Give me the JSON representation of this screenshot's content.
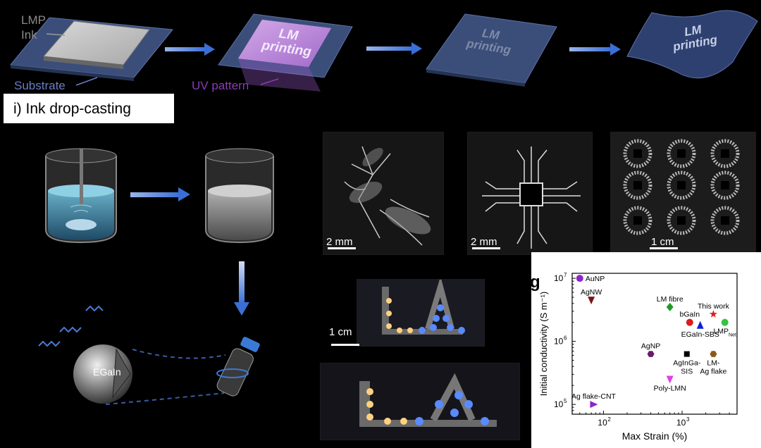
{
  "top_row": {
    "lmp_ink_label_1": "LMP",
    "lmp_ink_label_2": "Ink",
    "substrate_label": "Substrate",
    "uv_pattern_label": "UV pattern",
    "panel2_text_1": "LM",
    "panel2_text_2": "printing",
    "panel3_text_1": "LM",
    "panel3_text_2": "printing",
    "panel4_text_1": "LM",
    "panel4_text_2": "printing"
  },
  "step_box": {
    "text": "i) Ink drop-casting"
  },
  "droplet": {
    "label": "EGaIn"
  },
  "photos": {
    "flower_scale": "2 mm",
    "chip_scale": "2 mm",
    "array_scale": "1 cm",
    "led_scale": "1 cm"
  },
  "chart_data": {
    "type": "scatter",
    "panel_letter": "g",
    "xlabel": "Max Strain (%)",
    "ylabel": "Initial conductivity (S m⁻¹)",
    "xscale": "log",
    "yscale": "log",
    "xlim": [
      40,
      5000
    ],
    "ylim": [
      70000,
      12000000
    ],
    "x_ticks": [
      {
        "v": 100,
        "base": "10",
        "exp": "2"
      },
      {
        "v": 1000,
        "base": "10",
        "exp": "3"
      }
    ],
    "y_ticks": [
      {
        "v": 100000,
        "base": "10",
        "exp": "5"
      },
      {
        "v": 1000000,
        "base": "10",
        "exp": "6"
      },
      {
        "v": 10000000,
        "base": "10",
        "exp": "7"
      }
    ],
    "points": [
      {
        "name": "AuNP",
        "x": 50,
        "y": 10000000,
        "marker": "circle",
        "color": "#8e24c8",
        "label_anchor": "right"
      },
      {
        "name": "AgNW",
        "x": 70,
        "y": 4500000,
        "marker": "triangle-down",
        "color": "#7a1414",
        "label_anchor": "above"
      },
      {
        "name": "LM fibre",
        "x": 700,
        "y": 3500000,
        "marker": "diamond",
        "color": "#1f9a2a",
        "label_anchor": "above"
      },
      {
        "name": "bGaIn",
        "x": 1250,
        "y": 2000000,
        "marker": "circle",
        "color": "#e01818",
        "label_anchor": "above"
      },
      {
        "name": "This work",
        "x": 2500,
        "y": 2700000,
        "marker": "star",
        "color": "#e01818",
        "label_anchor": "above"
      },
      {
        "name": "LMP",
        "sub": "Net",
        "x": 3500,
        "y": 2000000,
        "marker": "circle",
        "color": "#35c240",
        "label_anchor": "below"
      },
      {
        "name": "EGaIn-SBS",
        "x": 1700,
        "y": 1800000,
        "marker": "triangle-up",
        "color": "#1020d8",
        "label_anchor": "below"
      },
      {
        "name": "AgNP",
        "x": 400,
        "y": 630000,
        "marker": "hexagon",
        "color": "#6a1a6a",
        "label_anchor": "above"
      },
      {
        "name": "AgInGa-SIS",
        "x": 1150,
        "y": 630000,
        "marker": "square",
        "color": "#000000",
        "label_anchor": "below"
      },
      {
        "name": "LM-Ag flake",
        "x": 2500,
        "y": 630000,
        "marker": "hexagon",
        "color": "#8a5a14",
        "label_anchor": "below"
      },
      {
        "name": "Poly-LMN",
        "x": 700,
        "y": 250000,
        "marker": "triangle-down",
        "color": "#e040e0",
        "label_anchor": "below"
      },
      {
        "name": "Ag flake-CNT",
        "x": 75,
        "y": 100000,
        "marker": "triangle-right",
        "color": "#8e24c8",
        "label_anchor": "above"
      }
    ]
  }
}
